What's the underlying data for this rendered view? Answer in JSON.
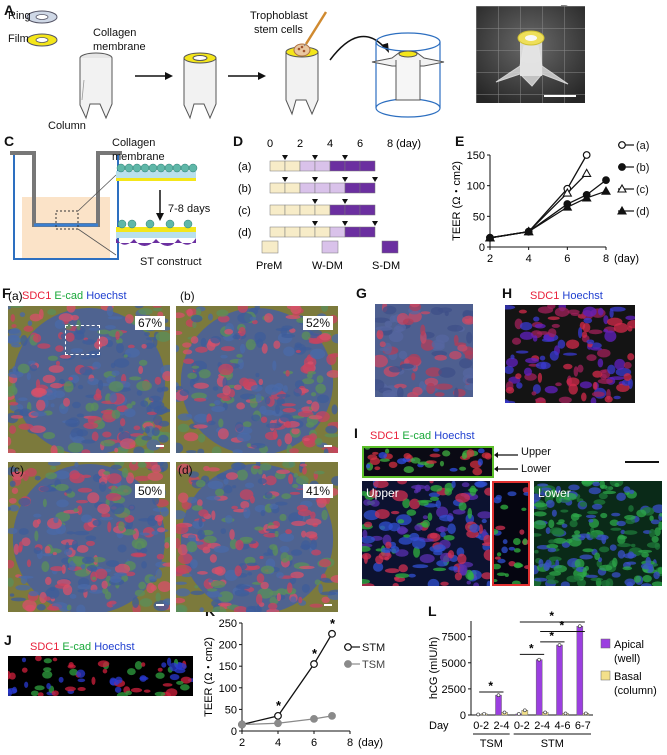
{
  "panels": {
    "A": "A",
    "B": "B",
    "C": "C",
    "D": "D",
    "E": "E",
    "F": "F",
    "G": "G",
    "H": "H",
    "I": "I",
    "J": "J",
    "K": "K",
    "L": "L"
  },
  "panelA": {
    "ring": "Ring",
    "film": "Film",
    "collagen": "Collagen",
    "membrane": "membrane",
    "column": "Column",
    "tropho1": "Trophoblast",
    "tropho2": "stem cells"
  },
  "panelC": {
    "collagen": "Collagen",
    "membrane": "membrane",
    "days": "7-8 days",
    "construct": "ST construct"
  },
  "panelD": {
    "days": [
      "0",
      "2",
      "4",
      "6",
      "8"
    ],
    "unit": "(day)",
    "rows": [
      "(a)",
      "(b)",
      "(c)",
      "(d)"
    ],
    "legend": [
      "PreM",
      "W-DM",
      "S-DM"
    ],
    "colors": {
      "PreM": "#f7ecc8",
      "W-DM": "#d9c2ea",
      "S-DM": "#6b2fa0"
    }
  },
  "panelF": {
    "stain": {
      "sdc1": "SDC1",
      "ecad": "E-cad",
      "hoechst": "Hoechst"
    },
    "subs": [
      "(a)",
      "(b)",
      "(c)",
      "(d)"
    ],
    "percents": [
      "67%",
      "52%",
      "50%",
      "41%"
    ]
  },
  "panelH": {
    "sdc1": "SDC1",
    "hoechst": "Hoechst"
  },
  "panelI": {
    "sdc1": "SDC1",
    "ecad": "E-cad",
    "hoechst": "Hoechst",
    "upper": "Upper",
    "lower": "Lower"
  },
  "panelJ": {
    "sdc1": "SDC1",
    "ecad": "E-cad",
    "hoechst": "Hoechst"
  },
  "chart_data": [
    {
      "panel": "E",
      "type": "line",
      "ylabel": "TEER (Ω・cm2)",
      "xunit": "(day)",
      "xlim": [
        2,
        8
      ],
      "ylim": [
        0,
        150
      ],
      "xticks": [
        2,
        4,
        6,
        8
      ],
      "yticks": [
        0,
        50,
        100,
        150
      ],
      "series": [
        {
          "name": "(a)",
          "marker": "open-circle",
          "x": [
            2,
            4,
            6,
            7
          ],
          "y": [
            15,
            25,
            95,
            150
          ]
        },
        {
          "name": "(b)",
          "marker": "filled-circle",
          "x": [
            2,
            4,
            6,
            7,
            8
          ],
          "y": [
            15,
            25,
            70,
            85,
            109
          ]
        },
        {
          "name": "(c)",
          "marker": "open-triangle",
          "x": [
            2,
            4,
            6,
            7
          ],
          "y": [
            15,
            25,
            88,
            120
          ]
        },
        {
          "name": "(d)",
          "marker": "filled-triangle",
          "x": [
            2,
            4,
            6,
            7,
            8
          ],
          "y": [
            15,
            25,
            65,
            80,
            91
          ]
        }
      ]
    },
    {
      "panel": "K",
      "type": "line",
      "ylabel": "TEER (Ω・cm2)",
      "xunit": "(day)",
      "xlim": [
        2,
        8
      ],
      "ylim": [
        0,
        250
      ],
      "xticks": [
        2,
        4,
        6,
        8
      ],
      "yticks": [
        0,
        50,
        100,
        150,
        200,
        250
      ],
      "series": [
        {
          "name": "STM",
          "color": "#111111",
          "marker": "open-circle",
          "x": [
            2,
            4,
            6,
            7
          ],
          "y": [
            15,
            35,
            155,
            225
          ]
        },
        {
          "name": "TSM",
          "color": "#8a8a8a",
          "marker": "filled-circle",
          "x": [
            2,
            4,
            6,
            7
          ],
          "y": [
            15,
            18,
            28,
            35
          ]
        }
      ],
      "significance": [
        {
          "x": 4,
          "label": "*"
        },
        {
          "x": 6,
          "label": "*"
        },
        {
          "x": 7,
          "label": "*"
        }
      ]
    },
    {
      "panel": "L",
      "type": "bar",
      "ylabel": "hCG (mIU/h)",
      "ylim": [
        0,
        9000
      ],
      "yticks": [
        0,
        2500,
        5000,
        7500
      ],
      "categories": [
        "0-2",
        "2-4",
        "0-2",
        "2-4",
        "4-6",
        "6-7"
      ],
      "category_label": "Day",
      "groups": [
        {
          "name": "TSM",
          "categories": [
            0,
            1
          ]
        },
        {
          "name": "STM",
          "categories": [
            2,
            3,
            4,
            5
          ]
        }
      ],
      "series": [
        {
          "name": "Apical (well)",
          "legend_lines": [
            "Apical",
            "(well)"
          ],
          "color": "#9b3fe0",
          "values": [
            50,
            1900,
            100,
            5300,
            6700,
            8500
          ]
        },
        {
          "name": "Basal (column)",
          "legend_lines": [
            "Basal",
            "(column)"
          ],
          "color": "#f3e08a",
          "values": [
            120,
            250,
            450,
            250,
            150,
            150
          ]
        }
      ],
      "significance": [
        {
          "from": 1,
          "to": 0,
          "label": "*"
        },
        {
          "from": 2,
          "to": 3,
          "label": "*"
        },
        {
          "from": 3,
          "to": 4,
          "label": "*"
        },
        {
          "from": 3,
          "to": 5,
          "label": "*"
        },
        {
          "from": 2,
          "to": 5,
          "label": "*"
        }
      ]
    }
  ]
}
